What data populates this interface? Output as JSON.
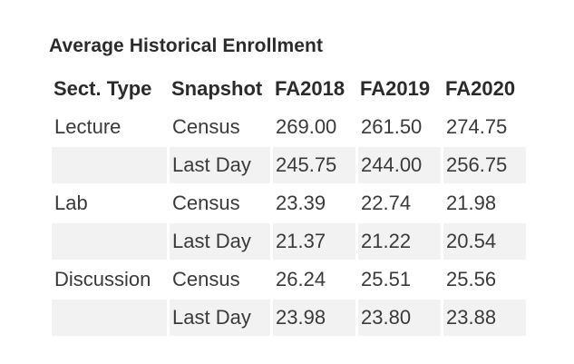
{
  "table": {
    "title": "Average Historical Enrollment",
    "headers": [
      "Sect. Type",
      "Snapshot",
      "FA2018",
      "FA2019",
      "FA2020"
    ],
    "rows": [
      {
        "type": "Lecture",
        "snapshot": "Census",
        "values": [
          "269.00",
          "261.50",
          "274.75"
        ]
      },
      {
        "type": "",
        "snapshot": "Last Day",
        "values": [
          "245.75",
          "244.00",
          "256.75"
        ]
      },
      {
        "type": "Lab",
        "snapshot": "Census",
        "values": [
          "23.39",
          "22.74",
          "21.98"
        ]
      },
      {
        "type": "",
        "snapshot": "Last Day",
        "values": [
          "21.37",
          "21.22",
          "20.54"
        ]
      },
      {
        "type": "Discussion",
        "snapshot": "Census",
        "values": [
          "26.24",
          "25.51",
          "25.56"
        ]
      },
      {
        "type": "",
        "snapshot": "Last Day",
        "values": [
          "23.98",
          "23.80",
          "23.88"
        ]
      }
    ]
  },
  "colors": {
    "shade": "#f2f2f2",
    "text": "#3a3a3a",
    "header_text": "#2b2b2b"
  }
}
